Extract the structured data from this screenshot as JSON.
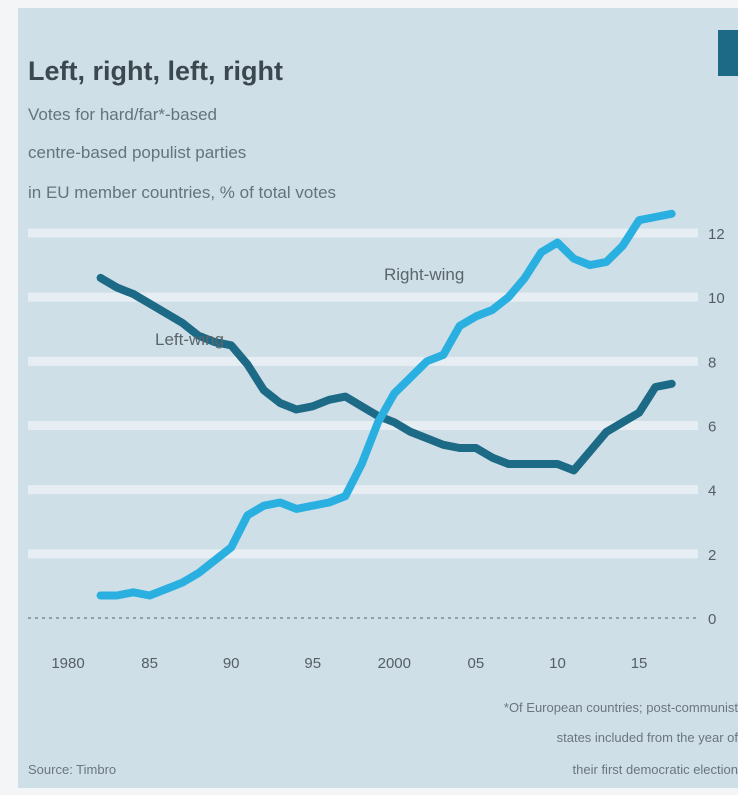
{
  "chart_data": {
    "type": "line",
    "title": "Left, right, left, right",
    "subtitle_lines": [
      "Votes for hard/far*-based",
      "centre-based populist parties",
      "in EU member countries, % of total votes"
    ],
    "xlabel": "",
    "ylabel": "",
    "x_ticks": [
      "1980",
      "85",
      "90",
      "95",
      "2000",
      "05",
      "10",
      "15"
    ],
    "xlim": [
      1980,
      2018
    ],
    "y_ticks": [
      0,
      2,
      4,
      6,
      8,
      10,
      12
    ],
    "ylim": [
      0,
      12
    ],
    "grid": true,
    "legend": "inline labels",
    "series": [
      {
        "name": "Left-wing",
        "color": "#1d6a87",
        "x": [
          1982,
          1983,
          1984,
          1985,
          1986,
          1987,
          1988,
          1989,
          1990,
          1991,
          1992,
          1993,
          1994,
          1995,
          1996,
          1997,
          1998,
          1999,
          2000,
          2001,
          2002,
          2003,
          2004,
          2005,
          2006,
          2007,
          2008,
          2009,
          2010,
          2011,
          2012,
          2013,
          2014,
          2015,
          2016,
          2017
        ],
        "values": [
          10.6,
          10.3,
          10.1,
          9.8,
          9.5,
          9.2,
          8.8,
          8.6,
          8.5,
          7.9,
          7.1,
          6.7,
          6.5,
          6.6,
          6.8,
          6.9,
          6.6,
          6.3,
          6.1,
          5.8,
          5.6,
          5.4,
          5.3,
          5.3,
          5.0,
          4.8,
          4.8,
          4.8,
          4.8,
          4.6,
          5.2,
          5.8,
          6.1,
          6.4,
          7.2,
          7.3
        ]
      },
      {
        "name": "Right-wing",
        "color": "#2ab0e0",
        "x": [
          1982,
          1983,
          1984,
          1985,
          1986,
          1987,
          1988,
          1989,
          1990,
          1991,
          1992,
          1993,
          1994,
          1995,
          1996,
          1997,
          1998,
          1999,
          2000,
          2001,
          2002,
          2003,
          2004,
          2005,
          2006,
          2007,
          2008,
          2009,
          2010,
          2011,
          2012,
          2013,
          2014,
          2015,
          2016,
          2017
        ],
        "values": [
          0.7,
          0.7,
          0.8,
          0.7,
          0.9,
          1.1,
          1.4,
          1.8,
          2.2,
          3.2,
          3.5,
          3.6,
          3.4,
          3.5,
          3.6,
          3.8,
          4.8,
          6.1,
          7.0,
          7.5,
          8.0,
          8.2,
          9.1,
          9.4,
          9.6,
          10.0,
          10.6,
          11.4,
          11.7,
          11.2,
          11.0,
          11.1,
          11.6,
          12.4,
          12.5,
          12.6
        ]
      }
    ],
    "footnote_lines": [
      "*Of European countries; post-communist",
      "states included from the year of",
      "their first democratic election"
    ],
    "source": "Source: Timbro"
  }
}
